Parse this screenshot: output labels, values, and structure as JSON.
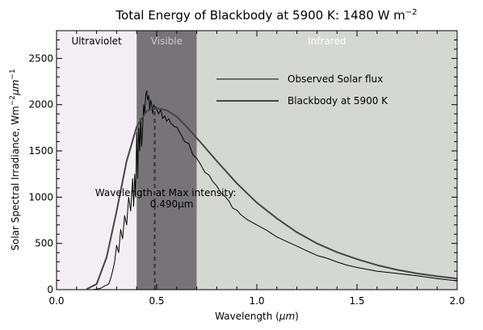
{
  "chart_data": {
    "type": "line",
    "title": "Total Energy of Blackbody at 5900 K: 1480 W m",
    "title_superscript": "−2",
    "xlabel": "Wavelength (",
    "xlabel_unit": "μm",
    "xlabel_end": ")",
    "ylabel": "Solar Spectral Irradiance, Wm",
    "ylabel_sup1": "−2",
    "ylabel_mid": "μm",
    "ylabel_sup2": "−1",
    "xlim": [
      0.0,
      2.0
    ],
    "ylim": [
      0,
      2800
    ],
    "x_ticks": [
      {
        "value": 0.0,
        "label": "0.0"
      },
      {
        "value": 0.5,
        "label": "0.5"
      },
      {
        "value": 1.0,
        "label": "1.0"
      },
      {
        "value": 1.5,
        "label": "1.5"
      },
      {
        "value": 2.0,
        "label": "2.0"
      }
    ],
    "y_ticks": [
      {
        "value": 0,
        "label": "0"
      },
      {
        "value": 500,
        "label": "500"
      },
      {
        "value": 1000,
        "label": "1000"
      },
      {
        "value": 1500,
        "label": "1500"
      },
      {
        "value": 2000,
        "label": "2000"
      },
      {
        "value": 2500,
        "label": "2500"
      }
    ],
    "regions": [
      {
        "label": "Ultraviolet",
        "x_range": [
          0.0,
          0.4
        ],
        "color": "#f2eef3",
        "text_color": "#000000"
      },
      {
        "label": "Visible",
        "x_range": [
          0.4,
          0.7
        ],
        "color": "#767477",
        "text_color": "#c8c8c8"
      },
      {
        "label": "Infrared",
        "x_range": [
          0.7,
          2.0
        ],
        "color": "#d5d7d3",
        "text_color": "#ffffff"
      }
    ],
    "annotations": [
      {
        "text": "Wavelength at Max intensity:",
        "x": 0.545,
        "y": 1010
      },
      {
        "text": "0.490μm",
        "x": 0.575,
        "y": 890
      }
    ],
    "peak_marker": {
      "x": 0.49,
      "y_from": 0,
      "y_to": 1950
    },
    "legend": {
      "placement": "top-right",
      "entries": [
        "Observed Solar flux",
        "Blackbody at 5900 K"
      ]
    },
    "series": [
      {
        "name": "Observed Solar flux",
        "color": "#000000",
        "x": [
          0.18,
          0.2,
          0.22,
          0.24,
          0.26,
          0.27,
          0.28,
          0.29,
          0.3,
          0.31,
          0.32,
          0.33,
          0.34,
          0.35,
          0.36,
          0.37,
          0.38,
          0.385,
          0.39,
          0.395,
          0.4,
          0.405,
          0.41,
          0.415,
          0.42,
          0.425,
          0.43,
          0.435,
          0.44,
          0.445,
          0.45,
          0.455,
          0.46,
          0.465,
          0.47,
          0.475,
          0.48,
          0.485,
          0.49,
          0.495,
          0.5,
          0.51,
          0.52,
          0.53,
          0.54,
          0.55,
          0.56,
          0.57,
          0.58,
          0.59,
          0.6,
          0.62,
          0.64,
          0.66,
          0.68,
          0.7,
          0.72,
          0.74,
          0.76,
          0.78,
          0.8,
          0.82,
          0.84,
          0.86,
          0.88,
          0.9,
          0.92,
          0.95,
          1.0,
          1.05,
          1.1,
          1.15,
          1.2,
          1.25,
          1.3,
          1.35,
          1.4,
          1.45,
          1.5,
          1.6,
          1.7,
          1.8,
          1.9,
          2.0
        ],
        "values": [
          0,
          5,
          15,
          40,
          60,
          120,
          200,
          300,
          480,
          400,
          650,
          550,
          800,
          700,
          1000,
          850,
          1200,
          900,
          1250,
          1000,
          1700,
          1200,
          1750,
          1500,
          1850,
          1550,
          1750,
          2000,
          1900,
          2100,
          2150,
          2050,
          2100,
          1950,
          2050,
          2000,
          1900,
          2000,
          1950,
          1980,
          1950,
          1900,
          1950,
          1850,
          1880,
          1820,
          1850,
          1800,
          1780,
          1760,
          1760,
          1680,
          1600,
          1580,
          1460,
          1420,
          1350,
          1270,
          1240,
          1170,
          1120,
          1050,
          1010,
          960,
          880,
          860,
          810,
          760,
          700,
          640,
          570,
          520,
          470,
          420,
          370,
          340,
          300,
          265,
          240,
          200,
          175,
          150,
          120,
          95
        ]
      },
      {
        "name": "Blackbody at 5900 K",
        "color": "#454545",
        "x": [
          0.15,
          0.2,
          0.25,
          0.3,
          0.35,
          0.4,
          0.45,
          0.49,
          0.55,
          0.6,
          0.65,
          0.7,
          0.8,
          0.9,
          1.0,
          1.1,
          1.2,
          1.3,
          1.4,
          1.5,
          1.6,
          1.7,
          1.8,
          1.9,
          2.0
        ],
        "values": [
          5,
          60,
          350,
          850,
          1390,
          1760,
          1930,
          1965,
          1940,
          1870,
          1760,
          1640,
          1390,
          1150,
          940,
          770,
          620,
          500,
          405,
          330,
          265,
          215,
          175,
          145,
          120
        ]
      }
    ]
  }
}
